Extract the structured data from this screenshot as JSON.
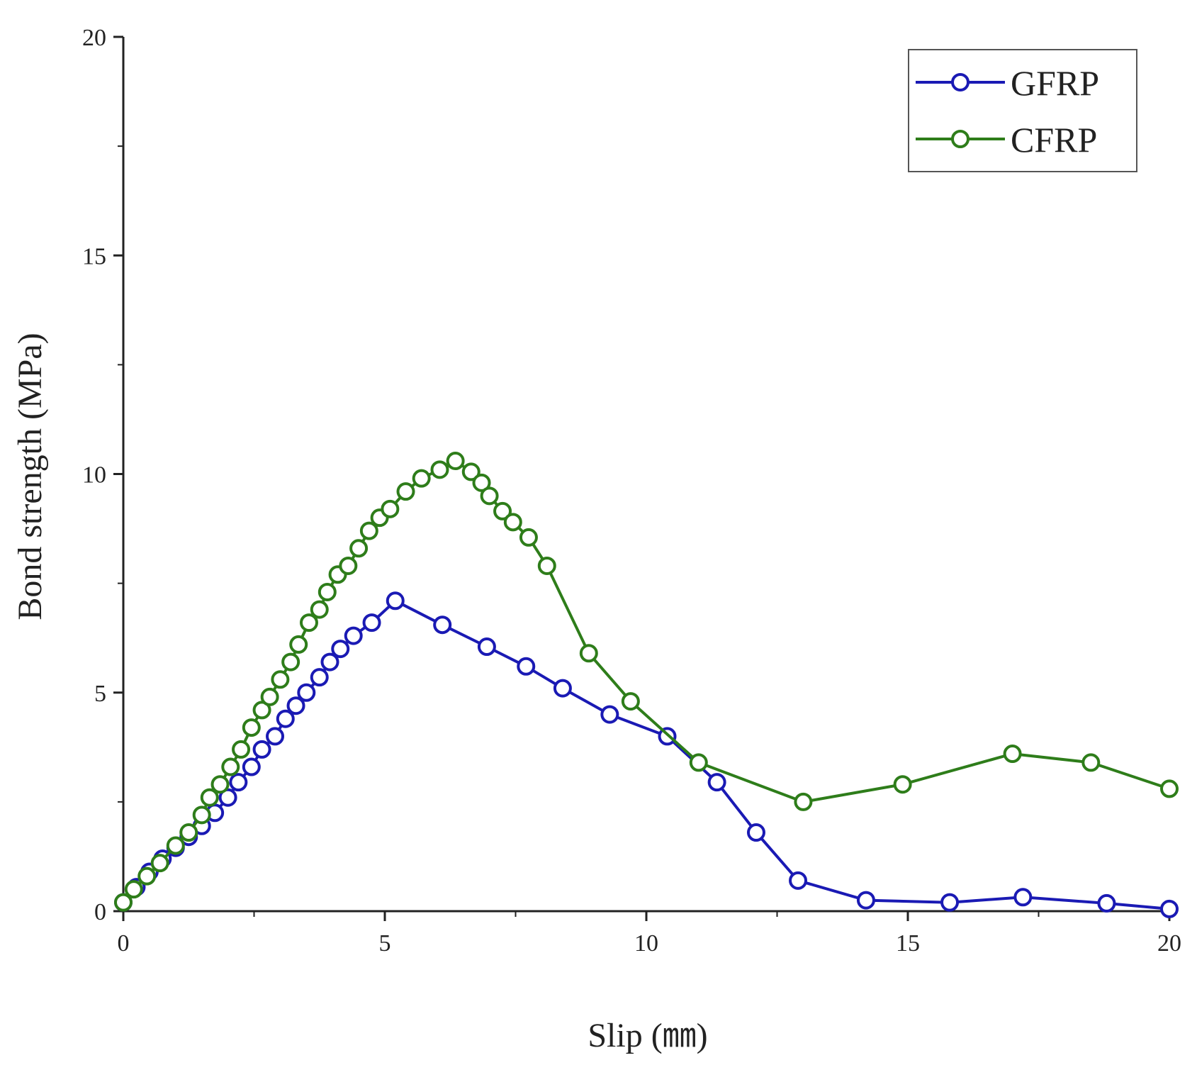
{
  "chart_data": {
    "type": "line",
    "title": "",
    "xlabel": "Slip (㎜)",
    "ylabel": "Bond strength (MPa)",
    "xlim": [
      0,
      20
    ],
    "ylim": [
      0,
      20
    ],
    "xticks": [
      "0",
      "5",
      "10",
      "15",
      "20"
    ],
    "yticks": [
      "0",
      "5",
      "10",
      "15",
      "20"
    ],
    "grid": false,
    "legend_position": "top-right",
    "series": [
      {
        "name": "GFRP",
        "color": "#1a1ab4",
        "marker": "open-circle",
        "x": [
          0.0,
          0.25,
          0.5,
          0.75,
          1.0,
          1.25,
          1.5,
          1.75,
          2.0,
          2.2,
          2.45,
          2.65,
          2.9,
          3.1,
          3.3,
          3.5,
          3.75,
          3.95,
          4.15,
          4.4,
          4.75,
          5.2,
          6.1,
          6.95,
          7.7,
          8.4,
          9.3,
          10.4,
          11.35,
          12.1,
          12.9,
          14.2,
          15.8,
          17.2,
          18.8,
          20.0
        ],
        "y": [
          0.2,
          0.55,
          0.9,
          1.2,
          1.45,
          1.7,
          1.95,
          2.25,
          2.6,
          2.95,
          3.3,
          3.7,
          4.0,
          4.4,
          4.7,
          5.0,
          5.35,
          5.7,
          6.0,
          6.3,
          6.6,
          7.1,
          6.55,
          6.05,
          5.6,
          5.1,
          4.5,
          4.0,
          2.95,
          1.8,
          0.7,
          0.25,
          0.2,
          0.32,
          0.18,
          0.05
        ]
      },
      {
        "name": "CFRP",
        "color": "#2e7d1a",
        "marker": "open-circle",
        "x": [
          0.0,
          0.2,
          0.45,
          0.7,
          1.0,
          1.25,
          1.5,
          1.65,
          1.85,
          2.05,
          2.25,
          2.45,
          2.65,
          2.8,
          3.0,
          3.2,
          3.35,
          3.55,
          3.75,
          3.9,
          4.1,
          4.3,
          4.5,
          4.7,
          4.9,
          5.1,
          5.4,
          5.7,
          6.05,
          6.35,
          6.65,
          6.85,
          7.0,
          7.25,
          7.45,
          7.75,
          8.1,
          8.9,
          9.7,
          11.0,
          13.0,
          14.9,
          17.0,
          18.5,
          20.0
        ],
        "y": [
          0.2,
          0.5,
          0.8,
          1.1,
          1.5,
          1.8,
          2.2,
          2.6,
          2.9,
          3.3,
          3.7,
          4.2,
          4.6,
          4.9,
          5.3,
          5.7,
          6.1,
          6.6,
          6.9,
          7.3,
          7.7,
          7.9,
          8.3,
          8.7,
          9.0,
          9.2,
          9.6,
          9.9,
          10.1,
          10.3,
          10.05,
          9.8,
          9.5,
          9.15,
          8.9,
          8.55,
          7.9,
          5.9,
          4.8,
          3.4,
          2.5,
          2.9,
          3.6,
          3.4,
          2.8
        ]
      }
    ]
  }
}
